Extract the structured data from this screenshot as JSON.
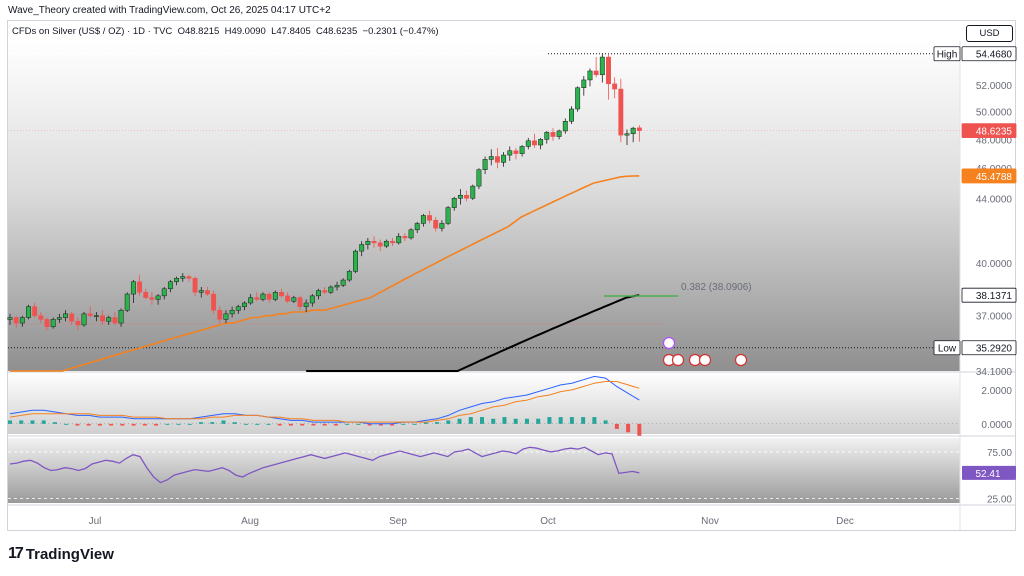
{
  "caption": "Wave_Theory created with TradingView.com, Oct 26, 2025 04:17 UTC+2",
  "legend": {
    "symbol": "CFDs on Silver (US$ / OZ) · 1D · TVC",
    "open_label": "O",
    "open": "48.8215",
    "high_label": "H",
    "high": "49.0090",
    "low_label": "L",
    "low": "47.8405",
    "close_label": "C",
    "close": "48.6235",
    "change": "−0.2301 (−0.47%)"
  },
  "currency": "USD",
  "footer_logo": "TradingView",
  "colors": {
    "up": "#26a69a",
    "down": "#ef5350",
    "ma_fast": "#f5811f",
    "ma_slow": "#000000",
    "macd": "#2962ff",
    "signal": "#f5811f",
    "rsi": "#7e57c2",
    "fib": "#4caf50"
  },
  "chart_data": {
    "type": "line",
    "title": "",
    "xlabel": "",
    "ylabel": "",
    "x_ticks": [
      "Jul",
      "Aug",
      "Sep",
      "Oct",
      "Nov",
      "Dec"
    ],
    "price_axis": {
      "ticks": [
        "52.0000",
        "50.0000",
        "48.0000",
        "46.0000",
        "44.0000",
        "40.0000",
        "37.0000",
        "34.1000"
      ],
      "range": [
        34.1,
        55.5
      ],
      "scale": "log"
    },
    "price_tags": [
      {
        "label": "High",
        "value": "54.4680"
      },
      {
        "label": "",
        "value": "48.6235"
      },
      {
        "label": "",
        "value": "45.4788"
      },
      {
        "label": "",
        "value": "38.1371"
      },
      {
        "label": "Low",
        "value": "35.2920"
      }
    ],
    "fib_label": "0.382 (38.0906)",
    "series": [
      {
        "type": "candlestick",
        "name": "",
        "ohlc": [
          [
            36.8,
            37.1,
            36.5,
            36.9
          ],
          [
            36.9,
            37.0,
            36.3,
            36.6
          ],
          [
            36.6,
            37.0,
            36.4,
            36.9
          ],
          [
            36.9,
            37.6,
            36.8,
            37.5
          ],
          [
            37.5,
            37.7,
            36.9,
            37.0
          ],
          [
            37.0,
            37.2,
            36.6,
            36.8
          ],
          [
            36.8,
            36.9,
            36.2,
            36.4
          ],
          [
            36.4,
            36.9,
            36.3,
            36.8
          ],
          [
            36.8,
            37.1,
            36.6,
            36.9
          ],
          [
            36.9,
            37.3,
            36.7,
            37.1
          ],
          [
            37.1,
            37.2,
            36.5,
            36.7
          ],
          [
            36.7,
            36.9,
            36.2,
            36.5
          ],
          [
            36.5,
            37.2,
            36.4,
            37.1
          ],
          [
            37.1,
            37.5,
            36.9,
            37.0
          ],
          [
            37.0,
            37.2,
            36.7,
            37.0
          ],
          [
            37.0,
            37.3,
            36.5,
            36.7
          ],
          [
            36.7,
            37.0,
            36.5,
            36.9
          ],
          [
            36.9,
            37.2,
            36.5,
            36.6
          ],
          [
            36.6,
            37.4,
            36.4,
            37.3
          ],
          [
            37.3,
            38.3,
            37.2,
            38.2
          ],
          [
            38.2,
            39.0,
            37.7,
            38.9
          ],
          [
            38.9,
            39.3,
            38.1,
            38.3
          ],
          [
            38.3,
            38.5,
            37.9,
            38.0
          ],
          [
            38.0,
            38.3,
            37.6,
            37.9
          ],
          [
            37.9,
            38.2,
            37.6,
            38.1
          ],
          [
            38.1,
            38.6,
            37.9,
            38.5
          ],
          [
            38.5,
            39.0,
            38.3,
            38.9
          ],
          [
            38.9,
            39.2,
            38.7,
            39.1
          ],
          [
            39.1,
            39.4,
            38.9,
            39.2
          ],
          [
            39.2,
            39.3,
            38.9,
            39.1
          ],
          [
            39.1,
            39.2,
            38.1,
            38.3
          ],
          [
            38.3,
            38.6,
            38.0,
            38.4
          ],
          [
            38.4,
            38.6,
            38.1,
            38.2
          ],
          [
            38.2,
            38.4,
            37.1,
            37.3
          ],
          [
            37.3,
            37.5,
            36.6,
            36.8
          ],
          [
            36.8,
            37.3,
            36.6,
            37.1
          ],
          [
            37.1,
            37.5,
            36.9,
            37.3
          ],
          [
            37.3,
            37.6,
            37.1,
            37.5
          ],
          [
            37.5,
            37.8,
            37.3,
            37.7
          ],
          [
            37.7,
            38.2,
            37.6,
            38.0
          ],
          [
            38.0,
            38.3,
            37.8,
            37.9
          ],
          [
            37.9,
            38.3,
            37.8,
            38.2
          ],
          [
            38.2,
            38.3,
            37.7,
            37.9
          ],
          [
            37.9,
            38.4,
            37.8,
            38.3
          ],
          [
            38.3,
            38.5,
            38.0,
            38.1
          ],
          [
            38.1,
            38.3,
            37.7,
            37.8
          ],
          [
            37.8,
            38.1,
            37.7,
            38.0
          ],
          [
            38.0,
            38.1,
            37.3,
            37.5
          ],
          [
            37.5,
            37.9,
            37.2,
            37.7
          ],
          [
            37.7,
            38.2,
            37.5,
            38.1
          ],
          [
            38.1,
            38.5,
            37.9,
            38.4
          ],
          [
            38.4,
            38.6,
            38.2,
            38.3
          ],
          [
            38.3,
            38.7,
            38.2,
            38.6
          ],
          [
            38.6,
            38.9,
            38.4,
            38.7
          ],
          [
            38.7,
            39.1,
            38.6,
            39.0
          ],
          [
            39.0,
            39.6,
            38.9,
            39.5
          ],
          [
            39.5,
            40.8,
            39.4,
            40.7
          ],
          [
            40.7,
            41.3,
            40.4,
            41.1
          ],
          [
            41.1,
            41.5,
            40.8,
            41.3
          ],
          [
            41.3,
            41.6,
            40.9,
            41.2
          ],
          [
            41.2,
            41.4,
            40.7,
            41.0
          ],
          [
            41.0,
            41.4,
            40.9,
            41.3
          ],
          [
            41.3,
            41.5,
            41.0,
            41.2
          ],
          [
            41.2,
            41.8,
            41.1,
            41.6
          ],
          [
            41.6,
            41.8,
            41.3,
            41.5
          ],
          [
            41.5,
            42.1,
            41.4,
            42.0
          ],
          [
            42.0,
            42.5,
            41.8,
            42.4
          ],
          [
            42.4,
            43.0,
            42.2,
            42.9
          ],
          [
            42.9,
            43.2,
            42.4,
            42.6
          ],
          [
            42.6,
            42.8,
            41.9,
            42.1
          ],
          [
            42.1,
            42.6,
            41.9,
            42.4
          ],
          [
            42.4,
            43.5,
            42.3,
            43.4
          ],
          [
            43.4,
            44.1,
            43.2,
            44.0
          ],
          [
            44.0,
            44.6,
            43.6,
            44.2
          ],
          [
            44.2,
            44.5,
            43.8,
            44.0
          ],
          [
            44.0,
            44.9,
            43.9,
            44.8
          ],
          [
            44.8,
            46.0,
            44.6,
            45.9
          ],
          [
            45.9,
            46.8,
            45.6,
            46.6
          ],
          [
            46.6,
            47.3,
            46.2,
            46.8
          ],
          [
            46.8,
            47.4,
            46.0,
            46.4
          ],
          [
            46.4,
            47.1,
            46.1,
            46.9
          ],
          [
            46.9,
            47.5,
            46.5,
            47.2
          ],
          [
            47.2,
            47.4,
            46.6,
            47.0
          ],
          [
            47.0,
            47.6,
            46.8,
            47.5
          ],
          [
            47.5,
            48.1,
            47.3,
            47.9
          ],
          [
            47.9,
            48.4,
            47.4,
            47.6
          ],
          [
            47.6,
            48.1,
            47.3,
            48.0
          ],
          [
            48.0,
            48.6,
            47.7,
            48.5
          ],
          [
            48.5,
            48.8,
            47.9,
            48.2
          ],
          [
            48.2,
            48.7,
            48.0,
            48.6
          ],
          [
            48.6,
            49.5,
            48.4,
            49.3
          ],
          [
            49.3,
            50.4,
            49.1,
            50.2
          ],
          [
            50.2,
            51.9,
            50.0,
            51.8
          ],
          [
            51.8,
            52.7,
            51.2,
            52.4
          ],
          [
            52.4,
            53.3,
            51.9,
            53.1
          ],
          [
            53.1,
            54.2,
            52.6,
            52.8
          ],
          [
            52.8,
            54.468,
            52.2,
            54.2
          ],
          [
            54.2,
            54.4,
            50.9,
            52.1
          ],
          [
            52.1,
            52.6,
            51.0,
            51.7
          ],
          [
            51.7,
            52.5,
            47.8,
            48.3
          ],
          [
            48.3,
            48.7,
            47.6,
            48.4
          ],
          [
            48.4,
            48.9,
            47.8,
            48.8
          ],
          [
            48.8215,
            49.009,
            47.8405,
            48.6235
          ]
        ]
      },
      {
        "type": "line",
        "name": "",
        "values": [
          33.3,
          33.4,
          33.5,
          33.6,
          33.7,
          33.8,
          33.9,
          34.0,
          34.1,
          34.2,
          34.3,
          34.4,
          34.5,
          34.6,
          34.7,
          34.8,
          34.9,
          35.0,
          35.1,
          35.2,
          35.3,
          35.4,
          35.5,
          35.6,
          35.7,
          35.8,
          35.9,
          36.0,
          36.1,
          36.2,
          36.3,
          36.4,
          36.5,
          36.6,
          36.6,
          36.7,
          36.8,
          36.9,
          36.9,
          37.0,
          37.0,
          37.1,
          37.1,
          37.2,
          37.2,
          37.2,
          37.3,
          37.3,
          37.3,
          37.4,
          37.5,
          37.6,
          37.7,
          37.8,
          37.9,
          38.0,
          38.2,
          38.4,
          38.6,
          38.8,
          39.0,
          39.2,
          39.4,
          39.6,
          39.8,
          40.0,
          40.2,
          40.4,
          40.6,
          40.8,
          41.0,
          41.2,
          41.4,
          41.6,
          41.8,
          42.0,
          42.2,
          42.5,
          42.8,
          43.0,
          43.2,
          43.4,
          43.6,
          43.8,
          44.0,
          44.2,
          44.4,
          44.6,
          44.8,
          45.0,
          45.1,
          45.2,
          45.3,
          45.4,
          45.45,
          45.47,
          45.4788
        ]
      },
      {
        "type": "line",
        "name": "",
        "values": [
          30.6,
          30.7,
          30.8,
          30.9,
          31.0,
          31.1,
          31.2,
          31.3,
          31.4,
          31.5,
          31.6,
          31.7,
          31.8,
          31.9,
          32.0,
          32.1,
          32.2,
          32.3,
          32.4,
          32.5,
          32.6,
          32.7,
          32.8,
          32.9,
          33.0,
          33.1,
          33.2,
          33.3,
          33.4,
          33.5,
          33.6,
          33.7,
          33.8,
          33.9,
          34.0,
          34.1,
          34.2,
          34.3,
          34.4,
          34.5,
          34.6,
          34.7,
          34.8,
          34.9,
          35.0,
          35.1,
          35.2,
          35.3,
          35.4,
          35.5,
          35.6,
          35.7,
          35.8,
          35.9,
          36.0,
          36.1,
          36.2,
          36.3,
          36.4,
          36.5,
          36.6,
          36.7,
          36.8,
          36.9,
          37.0,
          37.1,
          37.2,
          37.3,
          37.4,
          37.5,
          37.6,
          37.7,
          37.8,
          37.9,
          38.0,
          38.05,
          38.1,
          38.1371
        ]
      }
    ],
    "macd": {
      "axis_ticks": [
        "2.0000",
        "0.0000"
      ],
      "range": [
        -0.6,
        3.0
      ],
      "macd": [
        0.6,
        0.7,
        0.8,
        0.8,
        0.7,
        0.6,
        0.5,
        0.5,
        0.4,
        0.4,
        0.4,
        0.3,
        0.3,
        0.3,
        0.3,
        0.3,
        0.3,
        0.4,
        0.5,
        0.6,
        0.6,
        0.5,
        0.5,
        0.4,
        0.3,
        0.2,
        0.2,
        0.1,
        0.1,
        0.1,
        0.1,
        0.1,
        0.0,
        0.0,
        0.0,
        0.1,
        0.1,
        0.2,
        0.3,
        0.5,
        0.8,
        1.0,
        1.2,
        1.3,
        1.5,
        1.6,
        1.7,
        1.9,
        2.1,
        2.3,
        2.4,
        2.6,
        2.8,
        2.7,
        2.2,
        1.8,
        1.4
      ],
      "signal": [
        0.4,
        0.5,
        0.6,
        0.6,
        0.6,
        0.6,
        0.6,
        0.6,
        0.5,
        0.5,
        0.5,
        0.4,
        0.4,
        0.4,
        0.3,
        0.3,
        0.3,
        0.3,
        0.4,
        0.4,
        0.5,
        0.5,
        0.5,
        0.4,
        0.4,
        0.3,
        0.3,
        0.2,
        0.2,
        0.2,
        0.1,
        0.1,
        0.1,
        0.1,
        0.1,
        0.1,
        0.1,
        0.1,
        0.2,
        0.3,
        0.5,
        0.6,
        0.8,
        1.0,
        1.1,
        1.3,
        1.4,
        1.6,
        1.7,
        1.9,
        2.0,
        2.2,
        2.4,
        2.5,
        2.5,
        2.3,
        2.1
      ],
      "histogram": [
        0.2,
        0.2,
        0.2,
        0.2,
        0.1,
        0.0,
        -0.1,
        -0.1,
        -0.1,
        -0.1,
        -0.1,
        -0.1,
        -0.1,
        -0.1,
        0.0,
        0.0,
        0.0,
        0.1,
        0.1,
        0.2,
        0.1,
        0.0,
        0.0,
        0.0,
        -0.1,
        -0.1,
        -0.1,
        -0.1,
        -0.1,
        -0.1,
        0.0,
        0.0,
        -0.1,
        -0.1,
        -0.1,
        0.0,
        0.0,
        0.1,
        0.1,
        0.2,
        0.3,
        0.4,
        0.4,
        0.3,
        0.4,
        0.3,
        0.3,
        0.3,
        0.4,
        0.4,
        0.4,
        0.4,
        0.4,
        0.2,
        -0.3,
        -0.5,
        -0.7
      ]
    },
    "rsi": {
      "axis_ticks": [
        "75.00",
        "25.00"
      ],
      "range": [
        20,
        90
      ],
      "value_tag": "52.41",
      "values": [
        62,
        63,
        65,
        66,
        63,
        58,
        55,
        56,
        58,
        57,
        55,
        57,
        62,
        64,
        66,
        65,
        63,
        68,
        72,
        70,
        58,
        48,
        42,
        45,
        50,
        52,
        54,
        56,
        55,
        54,
        56,
        58,
        55,
        50,
        48,
        52,
        55,
        58,
        60,
        62,
        64,
        66,
        68,
        70,
        72,
        70,
        68,
        70,
        72,
        74,
        72,
        70,
        68,
        66,
        70,
        72,
        74,
        76,
        74,
        72,
        70,
        72,
        74,
        72,
        70,
        75,
        76,
        78,
        74,
        70,
        72,
        74,
        76,
        75,
        73,
        78,
        80,
        79,
        77,
        75,
        76,
        78,
        79,
        78,
        80,
        76,
        72,
        74,
        73,
        52,
        53,
        54,
        52.41
      ]
    }
  }
}
